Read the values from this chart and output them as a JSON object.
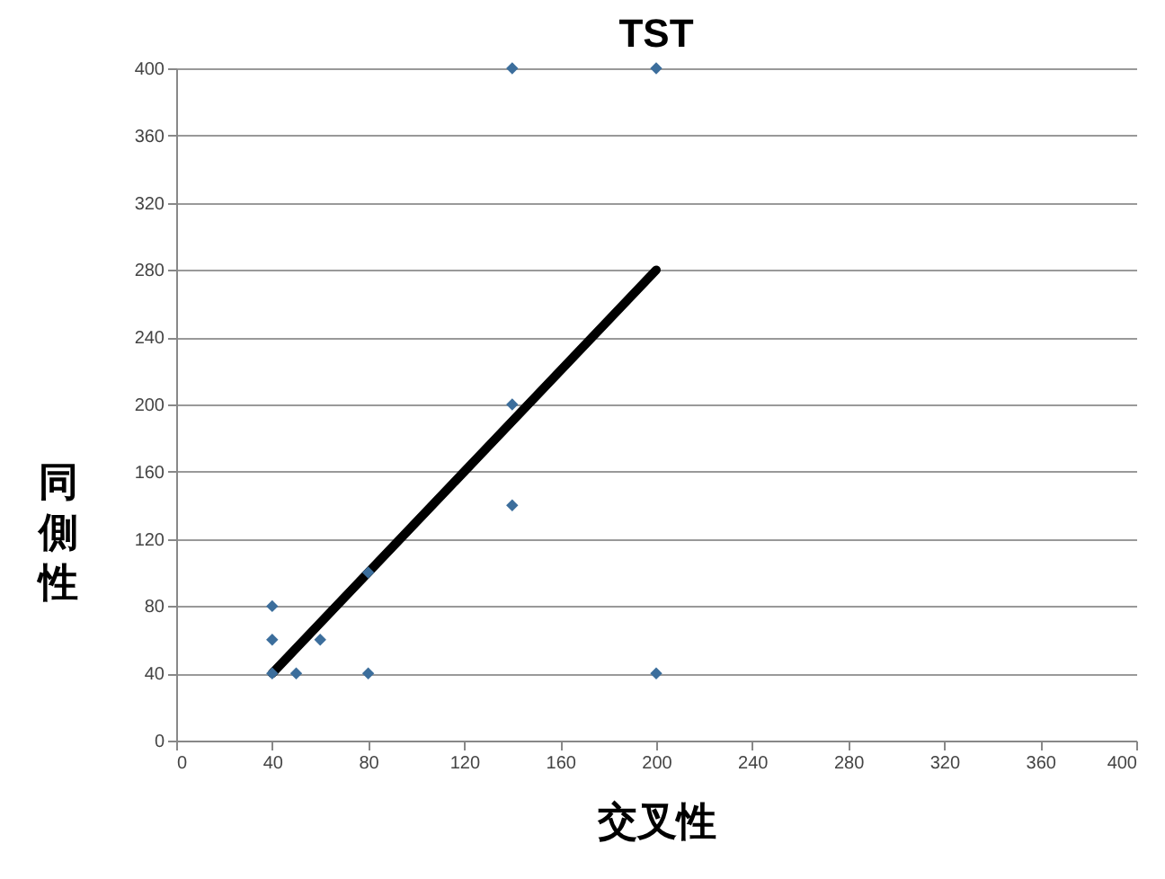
{
  "chart_data": {
    "type": "scatter",
    "title": "TST",
    "xlabel": "交叉性",
    "ylabel": "同側性",
    "xlim": [
      0,
      400
    ],
    "xticks": [
      0,
      40,
      80,
      120,
      160,
      200,
      240,
      280,
      320,
      360,
      400
    ],
    "ylim": [
      0,
      400
    ],
    "yticks": [
      0,
      40,
      80,
      120,
      160,
      200,
      240,
      280,
      320,
      360,
      400
    ],
    "grid": "y",
    "series": [
      {
        "color": "#3c6e9c",
        "marker": "diamond",
        "x": [
          40,
          40,
          40,
          50,
          60,
          80,
          80,
          140,
          140,
          140,
          200,
          200
        ],
        "values": [
          40,
          60,
          80,
          40,
          60,
          40,
          100,
          140,
          200,
          400,
          400,
          40
        ]
      },
      {
        "type": "line",
        "color": "#000000",
        "x": [
          40,
          200
        ],
        "values": [
          40,
          280
        ]
      }
    ]
  }
}
